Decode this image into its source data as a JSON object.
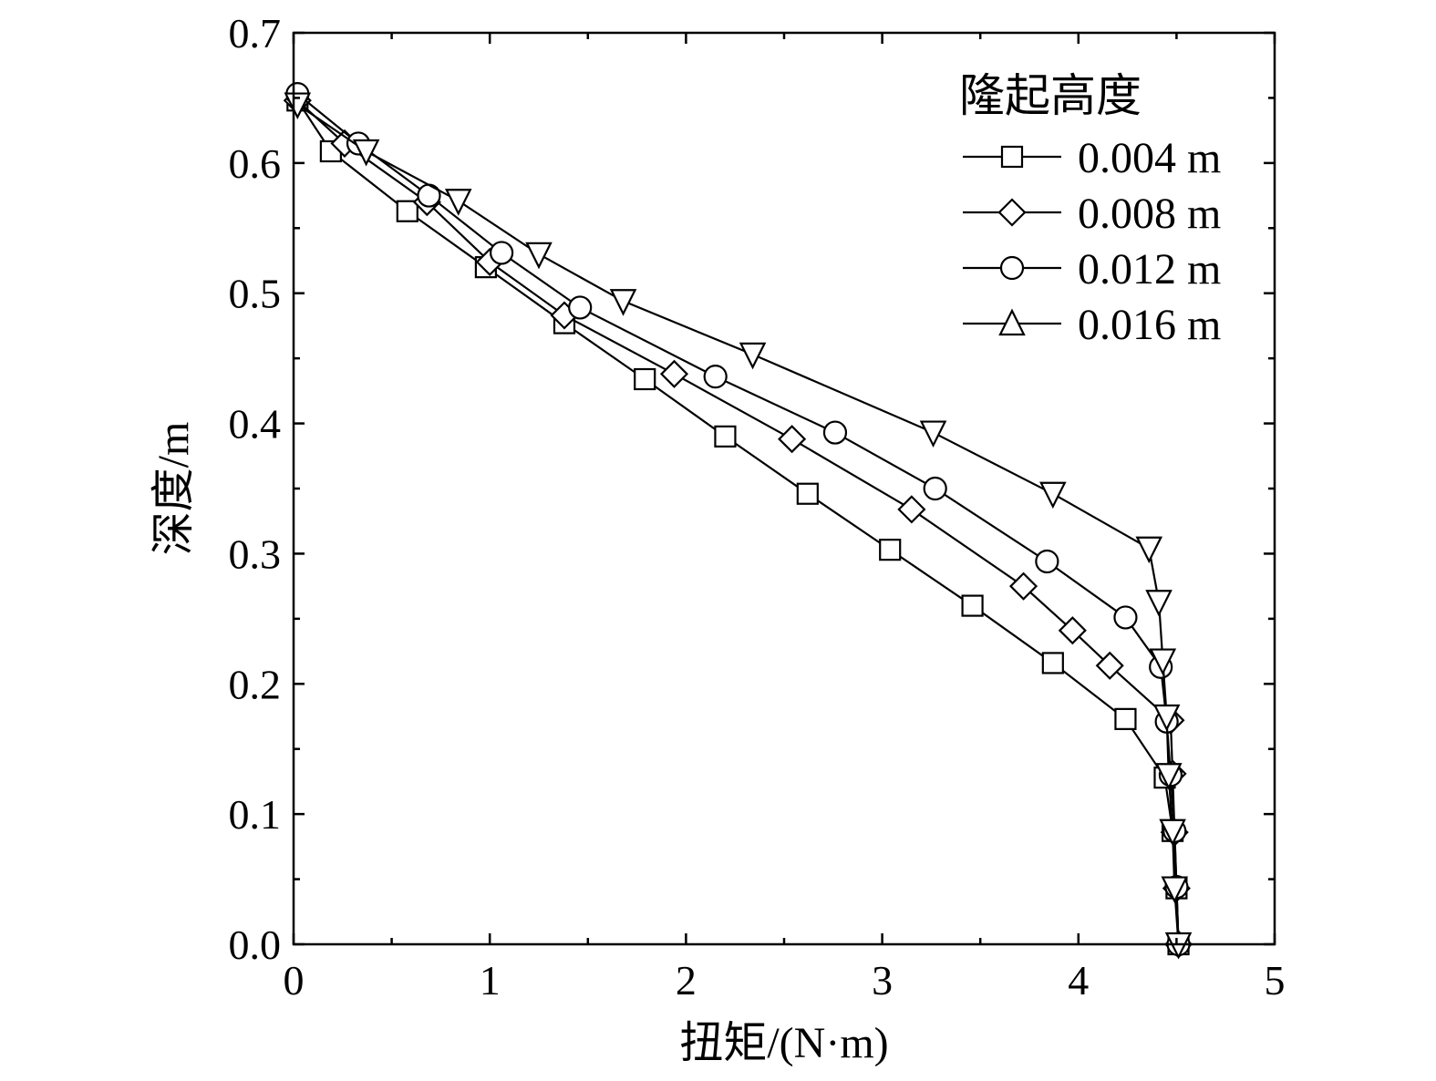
{
  "chart_data": {
    "type": "line",
    "title": "",
    "xlabel": "扭矩/(N·m)",
    "ylabel": "深度/m",
    "xlim": [
      0,
      5
    ],
    "ylim": [
      0,
      0.7
    ],
    "x_ticks": [
      "0",
      "1",
      "2",
      "3",
      "4",
      "5"
    ],
    "y_ticks": [
      "0.0",
      "0.1",
      "0.2",
      "0.3",
      "0.4",
      "0.5",
      "0.6",
      "0.7"
    ],
    "grid": false,
    "legend": {
      "title": "隆起高度",
      "position": "top-right"
    },
    "series": [
      {
        "name": "0.004 m",
        "marker": "square",
        "x": [
          0.02,
          0.19,
          0.58,
          0.98,
          1.38,
          1.79,
          2.2,
          2.62,
          3.04,
          3.46,
          3.87,
          4.24,
          4.44,
          4.48,
          4.5,
          4.51
        ],
        "y": [
          0.648,
          0.609,
          0.563,
          0.52,
          0.477,
          0.434,
          0.39,
          0.346,
          0.303,
          0.26,
          0.216,
          0.173,
          0.128,
          0.087,
          0.043,
          0.0
        ]
      },
      {
        "name": "0.008 m",
        "marker": "diamond",
        "x": [
          0.02,
          0.26,
          0.68,
          1.0,
          1.38,
          1.94,
          2.54,
          3.15,
          3.72,
          3.97,
          4.16,
          4.47,
          4.48,
          4.49,
          4.5,
          4.51
        ],
        "y": [
          0.648,
          0.615,
          0.57,
          0.524,
          0.483,
          0.438,
          0.388,
          0.334,
          0.275,
          0.241,
          0.214,
          0.172,
          0.131,
          0.086,
          0.043,
          0.0
        ]
      },
      {
        "name": "0.012 m",
        "marker": "circle",
        "x": [
          0.02,
          0.33,
          0.69,
          1.06,
          1.46,
          2.15,
          2.76,
          3.27,
          3.84,
          4.24,
          4.42,
          4.45,
          4.47,
          4.49,
          4.5,
          4.51
        ],
        "y": [
          0.653,
          0.615,
          0.575,
          0.531,
          0.489,
          0.436,
          0.393,
          0.35,
          0.294,
          0.251,
          0.213,
          0.171,
          0.13,
          0.087,
          0.044,
          0.0
        ]
      },
      {
        "name": "0.016 m",
        "marker": "triangle",
        "x": [
          0.02,
          0.37,
          0.84,
          1.25,
          1.68,
          2.34,
          3.26,
          3.87,
          4.36,
          4.41,
          4.43,
          4.45,
          4.46,
          4.48,
          4.49,
          4.51
        ],
        "y": [
          0.645,
          0.609,
          0.571,
          0.53,
          0.494,
          0.453,
          0.393,
          0.346,
          0.304,
          0.263,
          0.218,
          0.175,
          0.13,
          0.087,
          0.043,
          0.0
        ]
      }
    ]
  }
}
